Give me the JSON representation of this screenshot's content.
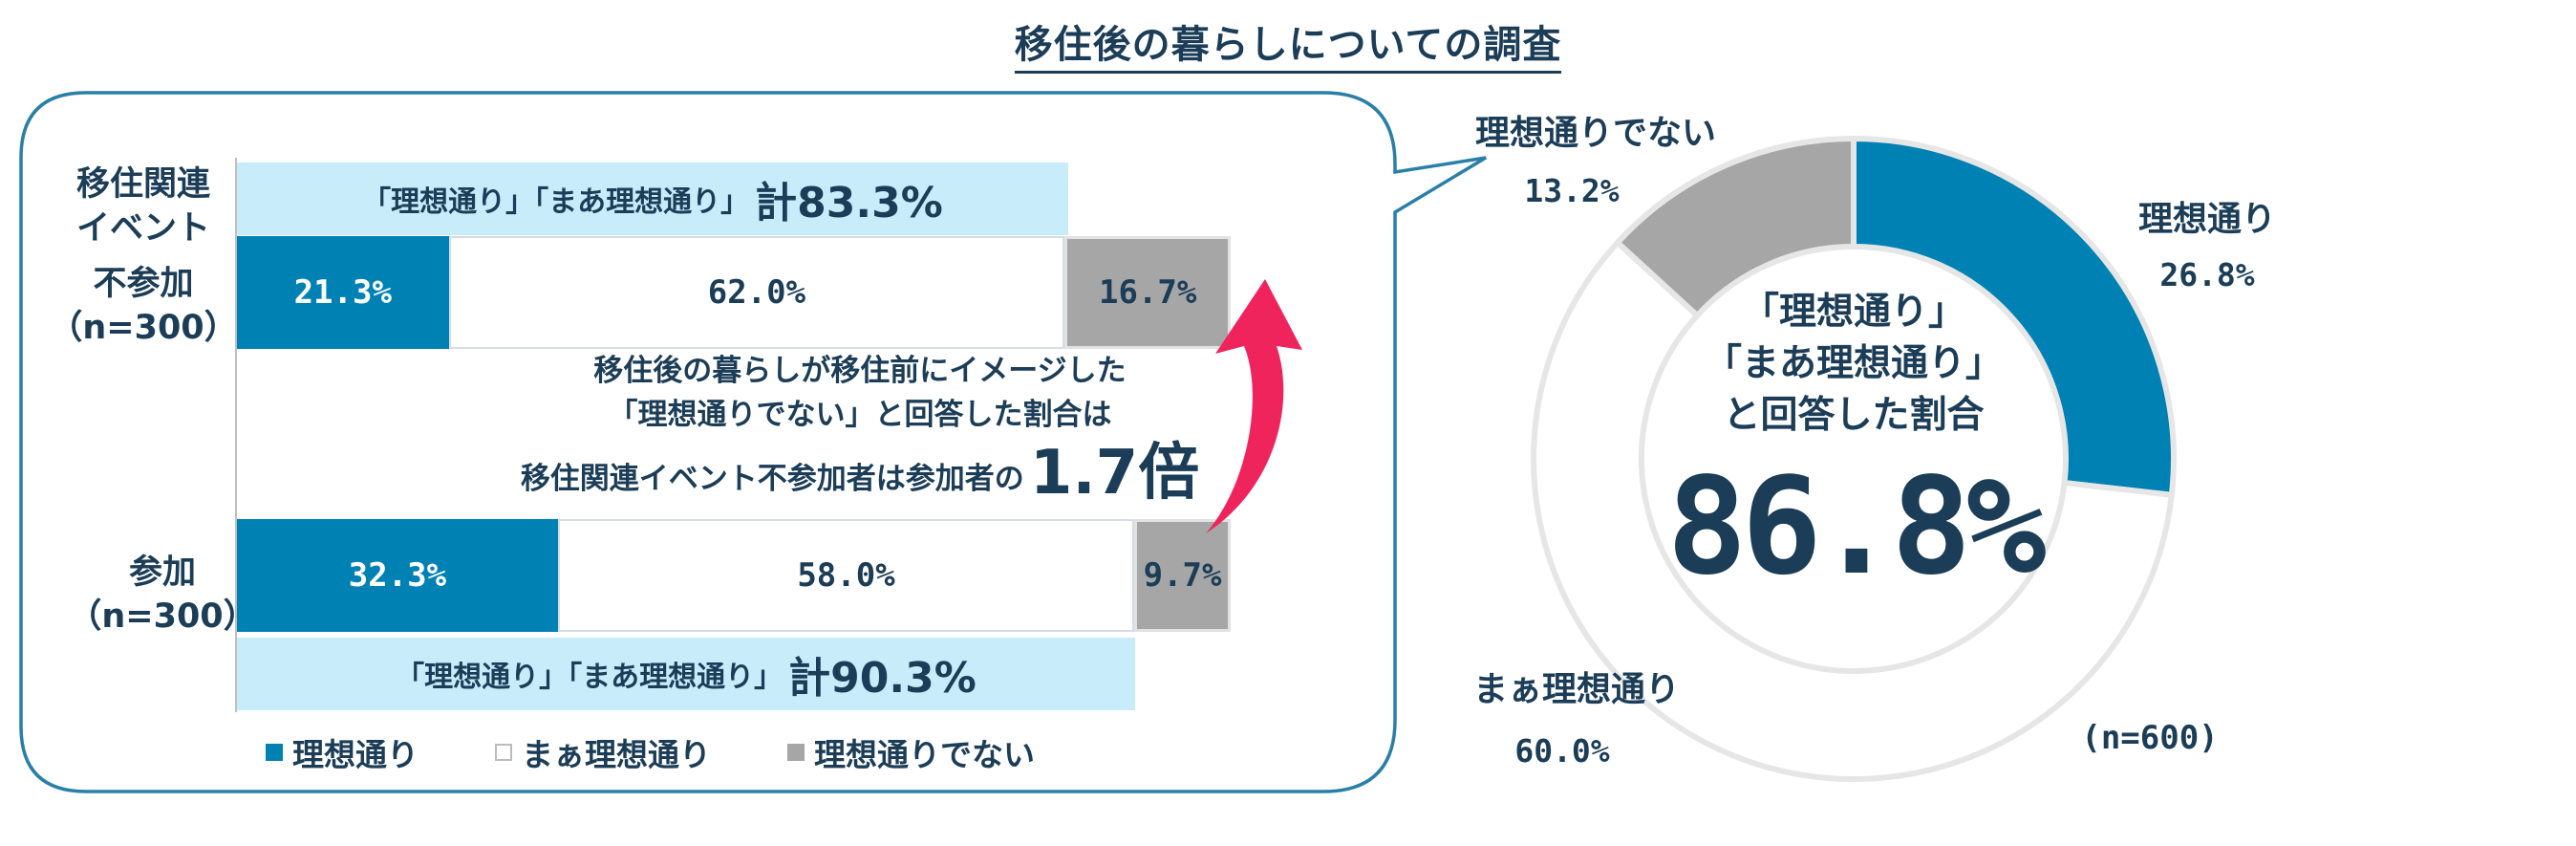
{
  "title": "移住後の暮らしについての調査",
  "bar_panel": {
    "rows": [
      {
        "label_lines": [
          "移住関連",
          "イベント",
          "不参加",
          "（n=300）"
        ]
      },
      {
        "label_lines": [
          "参加",
          "（n=300）"
        ]
      }
    ],
    "banner_top": {
      "text": "「理想通り」「まあ理想通り」",
      "total": "計83.3%"
    },
    "banner_bottom": {
      "text": "「理想通り」「まあ理想通り」",
      "total": "計90.3%"
    },
    "note_lines": [
      "移住後の暮らしが移住前にイメージした",
      "「理想通りでない」と回答した割合は"
    ],
    "note_prefix": "移住関連イベント不参加者は参加者の",
    "note_big": "1.7倍",
    "legend": [
      "理想通り",
      "まぁ理想通り",
      "理想通りでない"
    ]
  },
  "donut_panel": {
    "center_lines": [
      "「理想通り」",
      "「まあ理想通り」",
      "と回答した割合"
    ],
    "center_value": "86.8%",
    "n_label": "(n=600)",
    "slice_labels": [
      {
        "name": "理想通り",
        "pct": "26.8%"
      },
      {
        "name": "まぁ理想通り",
        "pct": "60.0%"
      },
      {
        "name": "理想通りでない",
        "pct": "13.2%"
      }
    ]
  },
  "colors": {
    "ideal": "#0081b4",
    "mostly": "#ffffff",
    "not_ideal": "#a6a6a6",
    "banner": "#c9ecfb",
    "bubble_border": "#2a7fa8",
    "arrow": "#f0245c",
    "text": "#1c3d57"
  },
  "chart_data": [
    {
      "type": "bar",
      "orientation": "horizontal",
      "stacked": true,
      "categories": [
        "移住関連イベント不参加（n=300）",
        "参加（n=300）"
      ],
      "series": [
        {
          "name": "理想通り",
          "values": [
            21.3,
            32.3
          ],
          "labels": [
            "21.3%",
            "32.3%"
          ]
        },
        {
          "name": "まぁ理想通り",
          "values": [
            62.0,
            58.0
          ],
          "labels": [
            "62.0%",
            "58.0%"
          ]
        },
        {
          "name": "理想通りでない",
          "values": [
            16.7,
            9.7
          ],
          "labels": [
            "16.7%",
            "9.7%"
          ]
        }
      ],
      "xlim": [
        0,
        100
      ],
      "legend": "bottom"
    },
    {
      "type": "pie",
      "donut": true,
      "categories": [
        "理想通り",
        "まぁ理想通り",
        "理想通りでない"
      ],
      "values": [
        26.8,
        60.0,
        13.2
      ],
      "labels": [
        "26.8%",
        "60.0%",
        "13.2%"
      ]
    }
  ]
}
